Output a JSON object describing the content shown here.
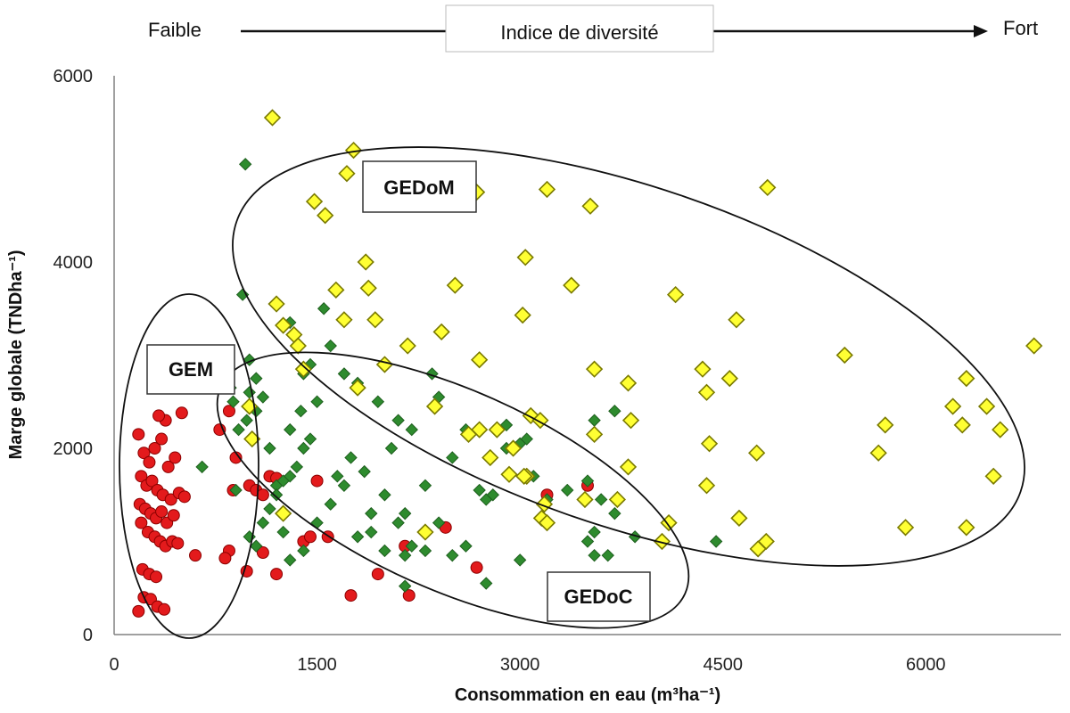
{
  "diversity_scale": {
    "low_label": "Faible",
    "title": "Indice de diversité",
    "high_label": "Fort"
  },
  "colors": {
    "GEM": "#e31a1c",
    "GEDoC": "#2e8b2e",
    "GEDoM": "#ffff33",
    "GEDoM_stroke": "#7a7a00",
    "GEDoC_stroke": "#1f5f1f",
    "GEM_stroke": "#8b0000"
  },
  "chart_data": {
    "type": "scatter",
    "title": "",
    "xlabel": "Consommation en eau (m³ha⁻¹)",
    "ylabel": "Marge globale (TNDha⁻¹)",
    "xlim": [
      0,
      7000
    ],
    "ylim": [
      0,
      6000
    ],
    "xticks": [
      "0",
      "1500",
      "3000",
      "4500",
      "6000"
    ],
    "yticks": [
      "0",
      "2000",
      "4000",
      "6000"
    ],
    "group_labels": [
      "GEM",
      "GEDoC",
      "GEDoM"
    ],
    "series": [
      {
        "name": "GEM",
        "marker": "circle",
        "points": [
          [
            180,
            2150
          ],
          [
            220,
            1950
          ],
          [
            260,
            1850
          ],
          [
            300,
            2000
          ],
          [
            350,
            2100
          ],
          [
            380,
            2300
          ],
          [
            330,
            2350
          ],
          [
            400,
            1800
          ],
          [
            450,
            1900
          ],
          [
            500,
            2380
          ],
          [
            200,
            1700
          ],
          [
            240,
            1600
          ],
          [
            280,
            1650
          ],
          [
            320,
            1550
          ],
          [
            360,
            1500
          ],
          [
            420,
            1450
          ],
          [
            480,
            1520
          ],
          [
            520,
            1480
          ],
          [
            190,
            1400
          ],
          [
            230,
            1350
          ],
          [
            270,
            1300
          ],
          [
            310,
            1250
          ],
          [
            350,
            1320
          ],
          [
            390,
            1200
          ],
          [
            440,
            1280
          ],
          [
            200,
            1200
          ],
          [
            250,
            1100
          ],
          [
            300,
            1050
          ],
          [
            340,
            1000
          ],
          [
            380,
            950
          ],
          [
            430,
            1000
          ],
          [
            470,
            980
          ],
          [
            210,
            700
          ],
          [
            260,
            650
          ],
          [
            310,
            620
          ],
          [
            220,
            400
          ],
          [
            270,
            380
          ],
          [
            320,
            300
          ],
          [
            370,
            270
          ],
          [
            180,
            250
          ],
          [
            600,
            850
          ],
          [
            850,
            900
          ],
          [
            820,
            820
          ],
          [
            980,
            680
          ],
          [
            1000,
            1600
          ],
          [
            1050,
            1550
          ],
          [
            1100,
            1500
          ],
          [
            1150,
            1700
          ],
          [
            1200,
            1680
          ],
          [
            780,
            2200
          ],
          [
            850,
            2400
          ],
          [
            900,
            1900
          ],
          [
            880,
            1550
          ],
          [
            1100,
            880
          ],
          [
            1200,
            650
          ],
          [
            1400,
            1000
          ],
          [
            1450,
            1050
          ],
          [
            1500,
            1650
          ],
          [
            1580,
            1050
          ],
          [
            1750,
            420
          ],
          [
            1950,
            650
          ],
          [
            2150,
            950
          ],
          [
            2180,
            420
          ],
          [
            2450,
            1150
          ],
          [
            2680,
            720
          ],
          [
            3500,
            1600
          ],
          [
            3200,
            1500
          ]
        ]
      },
      {
        "name": "GEDoC",
        "marker": "diamond",
        "points": [
          [
            970,
            5050
          ],
          [
            950,
            3650
          ],
          [
            1000,
            2950
          ],
          [
            1050,
            2750
          ],
          [
            1100,
            2550
          ],
          [
            1000,
            2600
          ],
          [
            980,
            2300
          ],
          [
            920,
            2200
          ],
          [
            880,
            2500
          ],
          [
            860,
            2650
          ],
          [
            1050,
            2400
          ],
          [
            1150,
            2000
          ],
          [
            1200,
            1600
          ],
          [
            650,
            1800
          ],
          [
            900,
            1550
          ],
          [
            1000,
            1050
          ],
          [
            1050,
            950
          ],
          [
            1100,
            1200
          ],
          [
            1150,
            1350
          ],
          [
            1200,
            1500
          ],
          [
            1250,
            1650
          ],
          [
            1300,
            1700
          ],
          [
            1350,
            1800
          ],
          [
            1400,
            2000
          ],
          [
            1450,
            2100
          ],
          [
            1300,
            2200
          ],
          [
            1380,
            2400
          ],
          [
            1500,
            2500
          ],
          [
            1400,
            2800
          ],
          [
            1300,
            3350
          ],
          [
            1450,
            2900
          ],
          [
            1550,
            3500
          ],
          [
            1600,
            3100
          ],
          [
            1700,
            2800
          ],
          [
            1800,
            2700
          ],
          [
            1950,
            2500
          ],
          [
            2050,
            2000
          ],
          [
            2150,
            1300
          ],
          [
            2300,
            1600
          ],
          [
            2400,
            1200
          ],
          [
            2500,
            1900
          ],
          [
            2600,
            2200
          ],
          [
            2200,
            2200
          ],
          [
            2100,
            2300
          ],
          [
            2000,
            1500
          ],
          [
            1900,
            1300
          ],
          [
            1700,
            1600
          ],
          [
            1600,
            1400
          ],
          [
            1500,
            1200
          ],
          [
            1400,
            900
          ],
          [
            1300,
            800
          ],
          [
            1250,
            1100
          ],
          [
            1800,
            1050
          ],
          [
            2000,
            900
          ],
          [
            2150,
            850
          ],
          [
            2200,
            950
          ],
          [
            2300,
            900
          ],
          [
            2700,
            1550
          ],
          [
            2750,
            1450
          ],
          [
            2800,
            1500
          ],
          [
            2900,
            2000
          ],
          [
            3000,
            2050
          ],
          [
            3100,
            1700
          ],
          [
            3200,
            1450
          ],
          [
            3350,
            1550
          ],
          [
            3500,
            1650
          ],
          [
            3600,
            1450
          ],
          [
            3700,
            1300
          ],
          [
            3550,
            1100
          ],
          [
            3500,
            1000
          ],
          [
            3650,
            850
          ],
          [
            3550,
            850
          ],
          [
            3000,
            800
          ],
          [
            2750,
            550
          ],
          [
            2150,
            520
          ],
          [
            4450,
            1000
          ],
          [
            3850,
            1050
          ],
          [
            2600,
            950
          ],
          [
            2500,
            850
          ],
          [
            2100,
            1200
          ],
          [
            1900,
            1100
          ],
          [
            1850,
            1750
          ],
          [
            2350,
            2800
          ],
          [
            2400,
            2550
          ],
          [
            2900,
            2250
          ],
          [
            3050,
            2100
          ],
          [
            3550,
            2300
          ],
          [
            3700,
            2400
          ],
          [
            1750,
            1900
          ],
          [
            1650,
            1700
          ]
        ]
      },
      {
        "name": "GEDoM",
        "marker": "diamond",
        "points": [
          [
            1170,
            5550
          ],
          [
            1770,
            5200
          ],
          [
            1720,
            4950
          ],
          [
            2680,
            4750
          ],
          [
            3200,
            4780
          ],
          [
            3520,
            4600
          ],
          [
            4830,
            4800
          ],
          [
            1480,
            4650
          ],
          [
            1560,
            4500
          ],
          [
            1860,
            4000
          ],
          [
            1640,
            3700
          ],
          [
            1880,
            3720
          ],
          [
            2520,
            3750
          ],
          [
            3380,
            3750
          ],
          [
            3040,
            4050
          ],
          [
            4150,
            3650
          ],
          [
            4600,
            3380
          ],
          [
            1200,
            3550
          ],
          [
            1250,
            3320
          ],
          [
            1330,
            3220
          ],
          [
            1360,
            3100
          ],
          [
            1700,
            3380
          ],
          [
            1930,
            3380
          ],
          [
            2170,
            3100
          ],
          [
            2420,
            3250
          ],
          [
            3020,
            3430
          ],
          [
            2700,
            2950
          ],
          [
            2000,
            2900
          ],
          [
            1400,
            2850
          ],
          [
            1800,
            2650
          ],
          [
            2370,
            2450
          ],
          [
            3550,
            2850
          ],
          [
            3800,
            2700
          ],
          [
            4350,
            2850
          ],
          [
            4380,
            2600
          ],
          [
            4550,
            2750
          ],
          [
            5400,
            3000
          ],
          [
            6800,
            3100
          ],
          [
            6300,
            2750
          ],
          [
            6200,
            2450
          ],
          [
            6450,
            2450
          ],
          [
            6550,
            2200
          ],
          [
            6270,
            2250
          ],
          [
            5700,
            2250
          ],
          [
            5650,
            1950
          ],
          [
            4750,
            1950
          ],
          [
            4400,
            2050
          ],
          [
            4380,
            1600
          ],
          [
            4620,
            1250
          ],
          [
            4100,
            1200
          ],
          [
            3720,
            1450
          ],
          [
            3480,
            1450
          ],
          [
            3180,
            1400
          ],
          [
            3160,
            1250
          ],
          [
            3200,
            1200
          ],
          [
            3050,
            1700
          ],
          [
            2920,
            1720
          ],
          [
            2780,
            1900
          ],
          [
            2950,
            2000
          ],
          [
            3080,
            2350
          ],
          [
            3150,
            2300
          ],
          [
            2700,
            2200
          ],
          [
            2830,
            2200
          ],
          [
            3030,
            1700
          ],
          [
            3550,
            2150
          ],
          [
            3820,
            2300
          ],
          [
            3800,
            1800
          ],
          [
            4050,
            1000
          ],
          [
            4820,
            1000
          ],
          [
            4760,
            920
          ],
          [
            5850,
            1150
          ],
          [
            6300,
            1150
          ],
          [
            6500,
            1700
          ],
          [
            1000,
            2450
          ],
          [
            1020,
            2100
          ],
          [
            1250,
            1300
          ],
          [
            2300,
            1100
          ],
          [
            2620,
            2150
          ]
        ]
      }
    ]
  }
}
